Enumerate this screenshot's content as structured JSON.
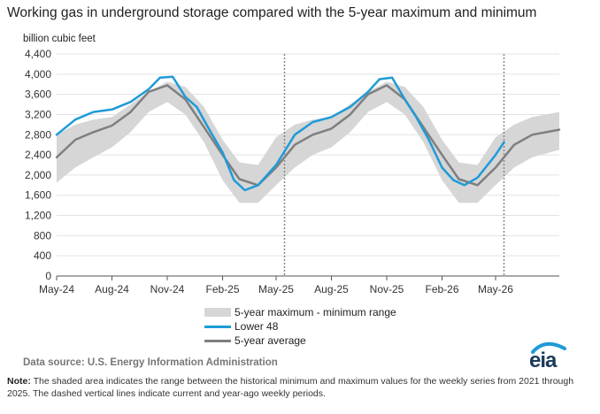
{
  "title": "Working gas in underground  storage compared with the 5-year maximum and minimum",
  "units": "billion cubic feet",
  "source": "Data source:  U.S. Energy Information Administration",
  "note_label": "Note:",
  "note_text": " The shaded area indicates the range between the historical minimum and maximum values for the weekly series from 2021 through 2025. The dashed vertical lines indicate current and year-ago weekly periods.",
  "logo_text": "eia",
  "colors": {
    "lower48": "#1e9bd7",
    "average": "#7f7f7f",
    "range": "#d6d6d6",
    "grid": "#e3e3e3"
  },
  "chart_data": {
    "type": "area",
    "ylabel": "billion cubic feet",
    "ylim": [
      0,
      4400
    ],
    "yticks": [
      0,
      400,
      800,
      1200,
      1600,
      2000,
      2400,
      2800,
      3200,
      3600,
      4000,
      4400
    ],
    "xlim": [
      "2024-05-01",
      "2026-08-15"
    ],
    "xticks": [
      "2024-05-01",
      "2024-08-01",
      "2024-11-01",
      "2025-02-01",
      "2025-05-01",
      "2025-08-01",
      "2025-11-01",
      "2026-02-01",
      "2026-05-01"
    ],
    "xtick_labels": [
      "May-24",
      "Aug-24",
      "Nov-24",
      "Feb-25",
      "May-25",
      "Aug-25",
      "Nov-25",
      "Feb-26",
      "May-26"
    ],
    "grid": true,
    "legend_position": "bottom-center",
    "vlines": [
      "2025-05-15",
      "2026-05-15"
    ],
    "series": [
      {
        "name": "5-year maximum - minimum range",
        "kind": "range",
        "x": [
          "2024-05-01",
          "2024-06-01",
          "2024-07-01",
          "2024-08-01",
          "2024-09-01",
          "2024-10-01",
          "2024-11-01",
          "2024-12-01",
          "2025-01-01",
          "2025-02-01",
          "2025-03-01",
          "2025-04-01",
          "2025-05-01",
          "2025-06-01",
          "2025-07-01",
          "2025-08-01",
          "2025-09-01",
          "2025-10-01",
          "2025-11-01",
          "2025-12-01",
          "2026-01-01",
          "2026-02-01",
          "2026-03-01",
          "2026-04-01",
          "2026-05-01",
          "2026-06-01",
          "2026-07-01",
          "2026-08-15"
        ],
        "low": [
          1850,
          2150,
          2350,
          2550,
          2850,
          3250,
          3450,
          3200,
          2650,
          1900,
          1450,
          1450,
          1800,
          2150,
          2400,
          2550,
          2850,
          3250,
          3450,
          3200,
          2650,
          1900,
          1450,
          1450,
          1800,
          2150,
          2350,
          2500
        ],
        "high": [
          2800,
          3000,
          3100,
          3150,
          3400,
          3650,
          3850,
          3750,
          3350,
          2700,
          2250,
          2200,
          2750,
          3000,
          3100,
          3150,
          3400,
          3650,
          3850,
          3750,
          3350,
          2700,
          2250,
          2200,
          2750,
          3000,
          3150,
          3250
        ]
      },
      {
        "name": "Lower 48",
        "kind": "line",
        "x": [
          "2024-05-01",
          "2024-06-01",
          "2024-07-01",
          "2024-08-01",
          "2024-09-01",
          "2024-10-01",
          "2024-10-20",
          "2024-11-10",
          "2024-12-01",
          "2024-12-20",
          "2025-01-10",
          "2025-02-01",
          "2025-02-20",
          "2025-03-10",
          "2025-04-01",
          "2025-05-01",
          "2025-06-01",
          "2025-07-01",
          "2025-08-01",
          "2025-09-01",
          "2025-10-01",
          "2025-10-20",
          "2025-11-10",
          "2025-12-01",
          "2025-12-20",
          "2026-01-10",
          "2026-02-01",
          "2026-02-20",
          "2026-03-10",
          "2026-04-01",
          "2026-05-01",
          "2026-05-15"
        ],
        "values": [
          2800,
          3100,
          3250,
          3300,
          3450,
          3700,
          3930,
          3950,
          3550,
          3350,
          2900,
          2450,
          1900,
          1700,
          1800,
          2200,
          2800,
          3050,
          3150,
          3350,
          3650,
          3900,
          3930,
          3500,
          3150,
          2700,
          2150,
          1900,
          1800,
          1950,
          2400,
          2650
        ]
      },
      {
        "name": "5-year average",
        "kind": "line",
        "x": [
          "2024-05-01",
          "2024-06-01",
          "2024-07-01",
          "2024-08-01",
          "2024-09-01",
          "2024-10-01",
          "2024-11-01",
          "2024-12-01",
          "2025-01-01",
          "2025-02-01",
          "2025-03-01",
          "2025-04-01",
          "2025-05-01",
          "2025-06-01",
          "2025-07-01",
          "2025-08-01",
          "2025-09-01",
          "2025-10-01",
          "2025-11-01",
          "2025-12-01",
          "2026-01-01",
          "2026-02-01",
          "2026-03-01",
          "2026-04-01",
          "2026-05-01",
          "2026-06-01",
          "2026-07-01",
          "2026-08-15"
        ],
        "values": [
          2350,
          2700,
          2850,
          2980,
          3250,
          3650,
          3780,
          3500,
          2950,
          2400,
          1920,
          1800,
          2150,
          2600,
          2800,
          2920,
          3200,
          3600,
          3780,
          3500,
          2950,
          2400,
          1920,
          1800,
          2150,
          2600,
          2800,
          2900
        ]
      }
    ]
  },
  "legend": [
    {
      "label": "5-year maximum - minimum range"
    },
    {
      "label": "Lower 48"
    },
    {
      "label": "5-year average"
    }
  ]
}
